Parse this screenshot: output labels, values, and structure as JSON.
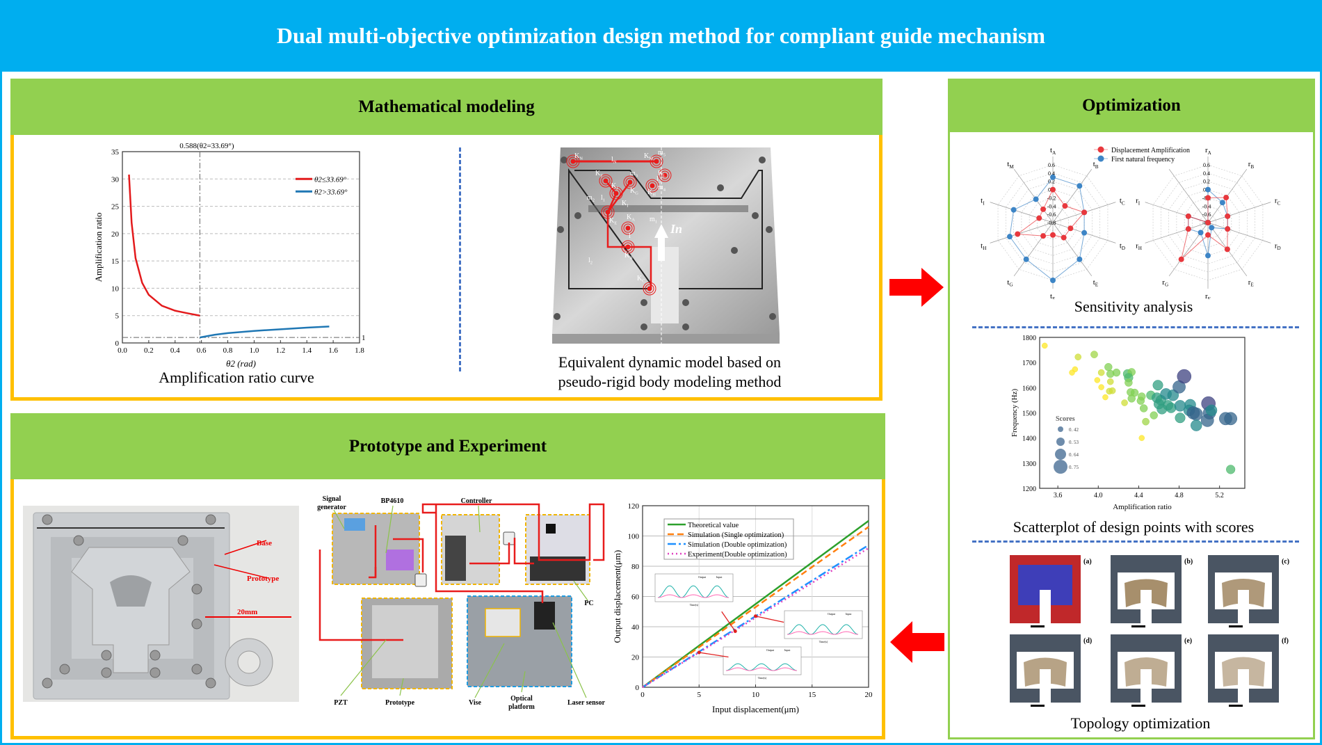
{
  "title": "Dual multi-objective optimization design method for compliant guide mechanism",
  "colors": {
    "header": "#00aeef",
    "panel_header": "#92d050",
    "panel_border": "#ffc000",
    "arrow": "#ff0000",
    "divider": "#4472c4"
  },
  "modeling": {
    "title": "Mathematical modeling",
    "curve_caption": "Amplification ratio curve",
    "model_caption_1": "Equivalent dynamic model based on",
    "model_caption_2": "pseudo-rigid body modeling method",
    "model_labels": [
      {
        "b": "K",
        "s": "N"
      },
      {
        "b": "l",
        "s": "N"
      },
      {
        "b": "K",
        "s": "M"
      },
      {
        "b": "m",
        "s": "5"
      },
      {
        "b": "K",
        "s": "F"
      },
      {
        "b": "m",
        "s": "3"
      },
      {
        "b": "K",
        "s": "L"
      },
      {
        "b": "l",
        "s": "3"
      },
      {
        "b": "m",
        "s": "4"
      },
      {
        "b": "K",
        "s": "J"
      },
      {
        "b": "K",
        "s": "G"
      },
      {
        "b": "K",
        "s": "H"
      },
      {
        "b": "m",
        "s": "2"
      },
      {
        "b": "l",
        "s": "1"
      },
      {
        "b": "K",
        "s": "I"
      },
      {
        "b": "K",
        "s": "E"
      },
      {
        "b": "K",
        "s": "A"
      },
      {
        "b": "m",
        "s": "1"
      },
      {
        "b": "l",
        "s": ""
      },
      {
        "b": "K",
        "s": "B"
      },
      {
        "b": "l",
        "s": "2"
      },
      {
        "b": "K",
        "s": "C"
      }
    ],
    "input_label": "In"
  },
  "prototype": {
    "title": "Prototype and Experiment",
    "photo_labels": {
      "base": "Base",
      "prototype": "Prototype",
      "scale": "20mm"
    },
    "setup_labels": {
      "signal_1": "Signal",
      "signal_2": "generator",
      "amp": "BP4610",
      "controller": "Controller",
      "pc": "PC",
      "pzt": "PZT",
      "prototype": "Prototype",
      "vise": "Vise",
      "platform_1": "Optical",
      "platform_2": "platform",
      "laser": "Laser sensor"
    },
    "inset": {
      "output": "Output",
      "input": "Input",
      "xlabel": "Time(s)"
    }
  },
  "optimization": {
    "title": "Optimization",
    "sensitivity_caption": "Sensitivity analysis",
    "scatter_caption": "Scatterplot of design points with scores",
    "topology_caption": "Topology optimization",
    "topology_tags": [
      "(a)",
      "(b)",
      "(c)",
      "(d)",
      "(e)",
      "(f)"
    ]
  },
  "chart_data": [
    {
      "type": "line",
      "id": "amplification",
      "xlabel": "θ2 (rad)",
      "ylabel": "Amplification ratio",
      "xlim": [
        0,
        1.8
      ],
      "ylim": [
        0,
        35
      ],
      "xticks": [
        "0.0",
        "0.2",
        "0.4",
        "0.6",
        "0.8",
        "1.0",
        "1.2",
        "1.4",
        "1.6",
        "1.8"
      ],
      "yticks": [
        "0",
        "5",
        "10",
        "15",
        "20",
        "25",
        "30",
        "35"
      ],
      "grid": true,
      "annotation": "0.588(θ2=33.69°)",
      "ref_x": 0.588,
      "ref_y": 1,
      "ref_y_label": "1",
      "legend": "top-right",
      "series": [
        {
          "name": "θ2≤33.69°",
          "color": "#e31a1c",
          "points": [
            [
              0.05,
              30.8
            ],
            [
              0.07,
              22
            ],
            [
              0.1,
              15.5
            ],
            [
              0.15,
              11
            ],
            [
              0.2,
              8.8
            ],
            [
              0.3,
              6.8
            ],
            [
              0.4,
              5.9
            ],
            [
              0.5,
              5.4
            ],
            [
              0.588,
              5.0
            ]
          ]
        },
        {
          "name": "θ2>33.69°",
          "color": "#1f77b4",
          "points": [
            [
              0.588,
              1.0
            ],
            [
              0.7,
              1.5
            ],
            [
              0.8,
              1.8
            ],
            [
              1.0,
              2.2
            ],
            [
              1.2,
              2.5
            ],
            [
              1.4,
              2.8
            ],
            [
              1.57,
              3.0
            ]
          ]
        }
      ]
    },
    {
      "type": "line",
      "id": "displacement",
      "xlabel": "Input displacement(μm)",
      "ylabel": "Output displacement(μm)",
      "xlim": [
        0,
        20
      ],
      "ylim": [
        0,
        120
      ],
      "xticks": [
        "0",
        "5",
        "10",
        "15",
        "20"
      ],
      "yticks": [
        "0",
        "20",
        "40",
        "60",
        "80",
        "100",
        "120"
      ],
      "grid": true,
      "legend": "top-left",
      "series": [
        {
          "name": "Theoretical value",
          "color": "#2ca02c",
          "style": "solid",
          "points": [
            [
              0,
              0
            ],
            [
              20,
              110
            ]
          ]
        },
        {
          "name": "Simulation (Single optimization)",
          "color": "#ff7f0e",
          "style": "dash",
          "points": [
            [
              0,
              0
            ],
            [
              20,
              106
            ]
          ]
        },
        {
          "name": "Simulation (Double optimization)",
          "color": "#1e90ff",
          "style": "dashdot",
          "points": [
            [
              0,
              0
            ],
            [
              20,
              94
            ]
          ]
        },
        {
          "name": "Experiment(Double optimization)",
          "color": "#e040c0",
          "style": "dot",
          "points": [
            [
              0,
              0
            ],
            [
              20,
              92
            ]
          ]
        }
      ]
    },
    {
      "type": "scatter",
      "id": "design-points",
      "xlabel": "Amplification ratio",
      "ylabel": "Frequency (Hz)",
      "xlim": [
        3.42,
        5.45
      ],
      "ylim": [
        1200,
        1800
      ],
      "xticks": [
        "3.6",
        "4.0",
        "4.4",
        "4.8",
        "5.2"
      ],
      "yticks": [
        "1200",
        "1300",
        "1400",
        "1500",
        "1600",
        "1700",
        "1800"
      ],
      "legend_title": "Scores",
      "legend_values": [
        "0.42",
        "0.53",
        "0.64",
        "0.75"
      ],
      "legend": "bottom-left",
      "points": [
        [
          3.47,
          1767,
          0.42
        ],
        [
          3.8,
          1722,
          0.45
        ],
        [
          3.96,
          1732,
          0.48
        ],
        [
          3.74,
          1660,
          0.42
        ],
        [
          3.77,
          1673,
          0.42
        ],
        [
          4.03,
          1660,
          0.45
        ],
        [
          4.1,
          1682,
          0.5
        ],
        [
          4.12,
          1655,
          0.5
        ],
        [
          4.18,
          1660,
          0.5
        ],
        [
          3.99,
          1630,
          0.42
        ],
        [
          4.03,
          1602,
          0.42
        ],
        [
          4.07,
          1562,
          0.42
        ],
        [
          4.11,
          1586,
          0.45
        ],
        [
          4.14,
          1588,
          0.45
        ],
        [
          4.12,
          1624,
          0.45
        ],
        [
          4.26,
          1540,
          0.45
        ],
        [
          4.29,
          1655,
          0.55
        ],
        [
          4.33,
          1662,
          0.5
        ],
        [
          4.3,
          1640,
          0.55
        ],
        [
          4.3,
          1620,
          0.5
        ],
        [
          4.32,
          1582,
          0.5
        ],
        [
          4.36,
          1580,
          0.5
        ],
        [
          4.33,
          1557,
          0.5
        ],
        [
          4.43,
          1565,
          0.5
        ],
        [
          4.42,
          1548,
          0.5
        ],
        [
          4.45,
          1518,
          0.5
        ],
        [
          4.47,
          1465,
          0.48
        ],
        [
          4.43,
          1400,
          0.42
        ],
        [
          4.52,
          1570,
          0.55
        ],
        [
          4.55,
          1490,
          0.5
        ],
        [
          4.59,
          1610,
          0.6
        ],
        [
          4.58,
          1560,
          0.6
        ],
        [
          4.6,
          1535,
          0.6
        ],
        [
          4.62,
          1550,
          0.6
        ],
        [
          4.63,
          1515,
          0.6
        ],
        [
          4.67,
          1575,
          0.64
        ],
        [
          4.69,
          1530,
          0.6
        ],
        [
          4.72,
          1520,
          0.6
        ],
        [
          4.74,
          1570,
          0.64
        ],
        [
          4.8,
          1603,
          0.7
        ],
        [
          4.81,
          1528,
          0.64
        ],
        [
          4.81,
          1480,
          0.6
        ],
        [
          4.85,
          1645,
          0.75
        ],
        [
          4.91,
          1532,
          0.64
        ],
        [
          4.9,
          1510,
          0.64
        ],
        [
          4.94,
          1500,
          0.7
        ],
        [
          4.97,
          1495,
          0.7
        ],
        [
          4.97,
          1450,
          0.64
        ],
        [
          5.08,
          1470,
          0.7
        ],
        [
          5.09,
          1537,
          0.75
        ],
        [
          5.1,
          1500,
          0.7
        ],
        [
          5.12,
          1510,
          0.64
        ],
        [
          5.26,
          1477,
          0.7
        ],
        [
          5.31,
          1477,
          0.7
        ],
        [
          5.31,
          1275,
          0.55
        ]
      ]
    },
    {
      "type": "radar",
      "id": "sensitivity",
      "range": [
        -0.8,
        0.6
      ],
      "ticks": [
        "0.6",
        "0.4",
        "0.2",
        "0.0",
        "-0.2",
        "-0.4",
        "-0.6",
        "-0.8"
      ],
      "legend": "top",
      "series_names": [
        "Displacement Amplification",
        "First natural frequency"
      ],
      "series_colors": [
        "#e8383d",
        "#3d85c6"
      ],
      "charts": [
        {
          "axes": [
            "tA",
            "tB",
            "tC",
            "tD",
            "tE",
            "tF",
            "tG",
            "tH",
            "tI",
            "tM"
          ],
          "red": [
            0.0,
            -0.3,
            0.0,
            -0.35,
            -0.35,
            -0.5,
            -0.4,
            0.1,
            -0.45,
            -0.4
          ],
          "blue": [
            0.3,
            0.3,
            0.0,
            0.0,
            0.3,
            0.6,
            0.3,
            0.3,
            0.2,
            -0.1
          ]
        },
        {
          "axes": [
            "rA",
            "rB",
            "rC",
            "rD",
            "rE",
            "rF",
            "rG",
            "rH",
            "rI",
            ""
          ],
          "red": [
            -0.2,
            -0.05,
            -0.3,
            -0.3,
            0.0,
            -0.5,
            0.3,
            -0.3,
            -0.3,
            -0.8
          ],
          "blue": [
            0.0,
            -0.2,
            -0.3,
            -0.3,
            -0.65,
            0.0,
            -0.5,
            -0.3,
            -0.3,
            -0.8
          ]
        }
      ]
    }
  ]
}
